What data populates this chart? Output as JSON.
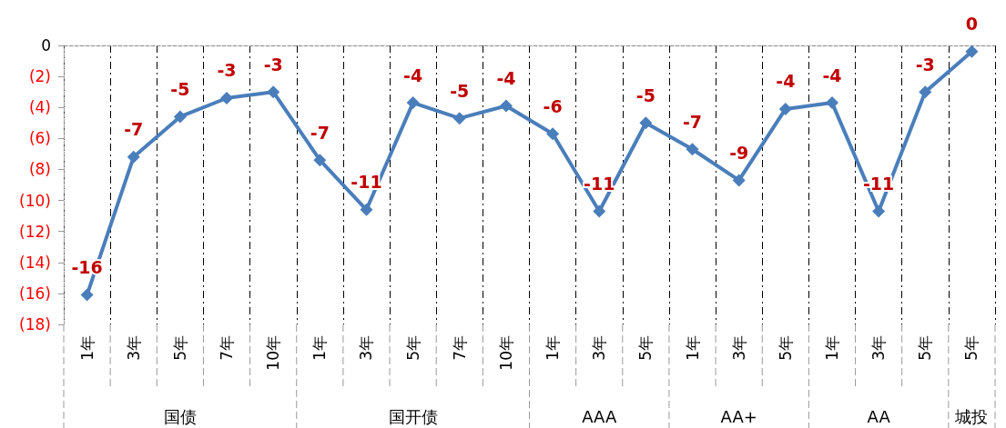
{
  "chart_data": {
    "type": "line",
    "categories": [
      "1年",
      "3年",
      "5年",
      "7年",
      "10年",
      "1年",
      "3年",
      "5年",
      "7年",
      "10年",
      "1年",
      "3年",
      "5年",
      "1年",
      "3年",
      "5年",
      "1年",
      "3年",
      "5年",
      "5年"
    ],
    "series": [
      {
        "color": "#4a7ebb",
        "values": [
          -16.1,
          -7.2,
          -4.6,
          -3.4,
          -3.0,
          -7.4,
          -10.6,
          -3.7,
          -4.7,
          -3.9,
          -5.7,
          -10.7,
          -5.0,
          -6.7,
          -8.7,
          -4.1,
          -3.7,
          -10.7,
          -3.0,
          -0.4
        ],
        "value_labels": [
          "-16",
          "-7",
          "-5",
          "-3",
          "-3",
          "-7",
          "-11",
          "-4",
          "-5",
          "-4",
          "-6",
          "-11",
          "-5",
          "-7",
          "-9",
          "-4",
          "-4",
          "-11",
          "-3",
          "0"
        ]
      }
    ],
    "ylim": [
      -18,
      0
    ],
    "yticks": [
      0,
      {
        "value": -2,
        "label": "(2)"
      },
      {
        "value": -4,
        "label": "(4)"
      },
      {
        "value": -6,
        "label": "(6)"
      },
      {
        "value": -8,
        "label": "(8)"
      },
      {
        "value": -10,
        "label": "(10)"
      },
      {
        "value": -12,
        "label": "(12)"
      },
      {
        "value": -14,
        "label": "(14)"
      },
      {
        "value": -16,
        "label": "(16)"
      },
      {
        "value": -18,
        "label": "(18)"
      }
    ],
    "annotations": [
      "国债",
      "国开债",
      "AAA",
      "AA+",
      "AA",
      "城投"
    ],
    "grid": "x",
    "marker": "diamond",
    "line_style": "solid"
  }
}
